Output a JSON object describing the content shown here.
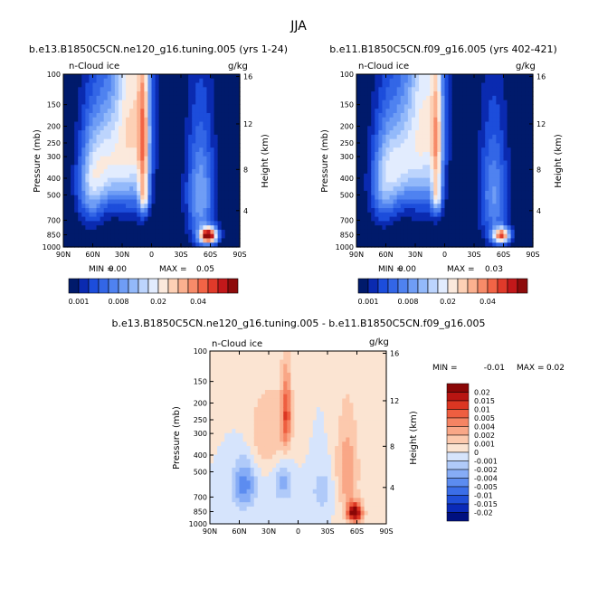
{
  "page": {
    "title": "JJA"
  },
  "colors": {
    "seq": [
      "#001a6b",
      "#0a2ab0",
      "#1c4ddb",
      "#3366e6",
      "#4f82f0",
      "#6f9df5",
      "#93b9fa",
      "#bcd4fd",
      "#e2ecfe",
      "#fbe9dc",
      "#fdd0b5",
      "#fbb08f",
      "#f78b69",
      "#f26446",
      "#e03a2a",
      "#c2181a",
      "#8e0b0b"
    ],
    "diff": [
      "#001080",
      "#0a2ab8",
      "#1f4ed8",
      "#3b6ee8",
      "#5c8cf0",
      "#86acf6",
      "#b0caf9",
      "#d6e4fc",
      "#fbe4d2",
      "#fcc9ad",
      "#f9a787",
      "#f58463",
      "#ee5e40",
      "#dc3622",
      "#b81512",
      "#8a0606"
    ]
  },
  "chart_data": [
    {
      "type": "heatmap",
      "title": "b.e13.B1850C5CN.ne120_g16.tuning.005 (yrs 1-24)",
      "field_label": "n-Cloud ice",
      "units": "g/kg",
      "ylabel": "Pressure (mb)",
      "y2label": "Height (km)",
      "xticks": [
        "90N",
        "60N",
        "30N",
        "0",
        "30S",
        "60S",
        "90S"
      ],
      "yticks": [
        "100",
        "150",
        "200",
        "250",
        "300",
        "400",
        "500",
        "700",
        "850",
        "1000"
      ],
      "y2ticks": [
        "16",
        "12",
        "8",
        "4"
      ],
      "min_text": "MIN =",
      "min_value": "0.00",
      "max_text": "MAX =",
      "max_value": "0.05",
      "colorbar_labels": [
        "0.001",
        "0.008",
        "0.02",
        "0.04"
      ],
      "features": [
        {
          "lat": 20,
          "p": 180,
          "peak": 0.55,
          "lat_width": 18,
          "p_width": 360
        },
        {
          "lat": 8,
          "p": 250,
          "peak": 0.45,
          "lat_width": 6,
          "p_width": 260
        },
        {
          "lat": 8,
          "p": 520,
          "peak": 0.35,
          "lat_width": 5,
          "p_width": 120
        },
        {
          "lat": 45,
          "p": 320,
          "peak": 0.4,
          "lat_width": 18,
          "p_width": 220
        },
        {
          "lat": 62,
          "p": 430,
          "peak": 0.35,
          "lat_width": 14,
          "p_width": 260
        },
        {
          "lat": -50,
          "p": 500,
          "peak": 0.35,
          "lat_width": 14,
          "p_width": 380
        },
        {
          "lat": -58,
          "p": 860,
          "peak": 1.0,
          "lat_width": 9,
          "p_width": 90
        }
      ]
    },
    {
      "type": "heatmap",
      "title": "b.e11.B1850C5CN.f09_g16.005 (yrs 402-421)",
      "field_label": "n-Cloud ice",
      "units": "g/kg",
      "ylabel": "Pressure (mb)",
      "y2label": "Height (km)",
      "xticks": [
        "90N",
        "60N",
        "30N",
        "0",
        "30S",
        "60S",
        "90S"
      ],
      "yticks": [
        "100",
        "150",
        "200",
        "250",
        "300",
        "400",
        "500",
        "700",
        "850",
        "1000"
      ],
      "y2ticks": [
        "16",
        "12",
        "8",
        "4"
      ],
      "min_text": "MIN =",
      "min_value": "0.00",
      "max_text": "MAX =",
      "max_value": "0.03",
      "colorbar_labels": [
        "0.001",
        "0.008",
        "0.02",
        "0.04"
      ],
      "features": [
        {
          "lat": 20,
          "p": 180,
          "peak": 0.5,
          "lat_width": 18,
          "p_width": 360
        },
        {
          "lat": 8,
          "p": 250,
          "peak": 0.4,
          "lat_width": 6,
          "p_width": 260
        },
        {
          "lat": 8,
          "p": 520,
          "peak": 0.3,
          "lat_width": 5,
          "p_width": 120
        },
        {
          "lat": 45,
          "p": 320,
          "peak": 0.38,
          "lat_width": 18,
          "p_width": 220
        },
        {
          "lat": 62,
          "p": 430,
          "peak": 0.32,
          "lat_width": 14,
          "p_width": 260
        },
        {
          "lat": -50,
          "p": 500,
          "peak": 0.3,
          "lat_width": 14,
          "p_width": 380
        },
        {
          "lat": -58,
          "p": 860,
          "peak": 0.75,
          "lat_width": 9,
          "p_width": 90
        }
      ]
    },
    {
      "type": "heatmap",
      "title": "b.e13.B1850C5CN.ne120_g16.tuning.005 - b.e11.B1850C5CN.f09_g16.005",
      "field_label": "n-Cloud ice",
      "units": "g/kg",
      "ylabel": "Pressure (mb)",
      "y2label": "Height (km)",
      "xticks": [
        "90N",
        "60N",
        "30N",
        "0",
        "30S",
        "60S",
        "90S"
      ],
      "yticks": [
        "100",
        "150",
        "200",
        "250",
        "300",
        "400",
        "500",
        "700",
        "850",
        "1000"
      ],
      "y2ticks": [
        "16",
        "12",
        "8",
        "4"
      ],
      "min_text": "MIN =",
      "min_value": "-0.01",
      "max_text": "MAX =",
      "max_value": "0.02",
      "colorbar_labels": [
        "0.02",
        "0.015",
        "0.01",
        "0.005",
        "0.004",
        "0.002",
        "0.001",
        "0",
        "-0.001",
        "-0.002",
        "-0.004",
        "-0.005",
        "-0.01",
        "-0.015",
        "-0.02"
      ],
      "features": [
        {
          "lat": 12,
          "p": 230,
          "peak": 0.55,
          "lat_width": 5,
          "p_width": 120
        },
        {
          "lat": 30,
          "p": 300,
          "peak": 0.25,
          "lat_width": 22,
          "p_width": 160
        },
        {
          "lat": 55,
          "p": 600,
          "peak": -0.45,
          "lat_width": 12,
          "p_width": 200
        },
        {
          "lat": 15,
          "p": 580,
          "peak": -0.3,
          "lat_width": 10,
          "p_width": 150
        },
        {
          "lat": -25,
          "p": 650,
          "peak": -0.2,
          "lat_width": 12,
          "p_width": 200
        },
        {
          "lat": -50,
          "p": 500,
          "peak": 0.35,
          "lat_width": 12,
          "p_width": 320
        },
        {
          "lat": -58,
          "p": 860,
          "peak": 1.0,
          "lat_width": 8,
          "p_width": 110
        }
      ]
    }
  ]
}
